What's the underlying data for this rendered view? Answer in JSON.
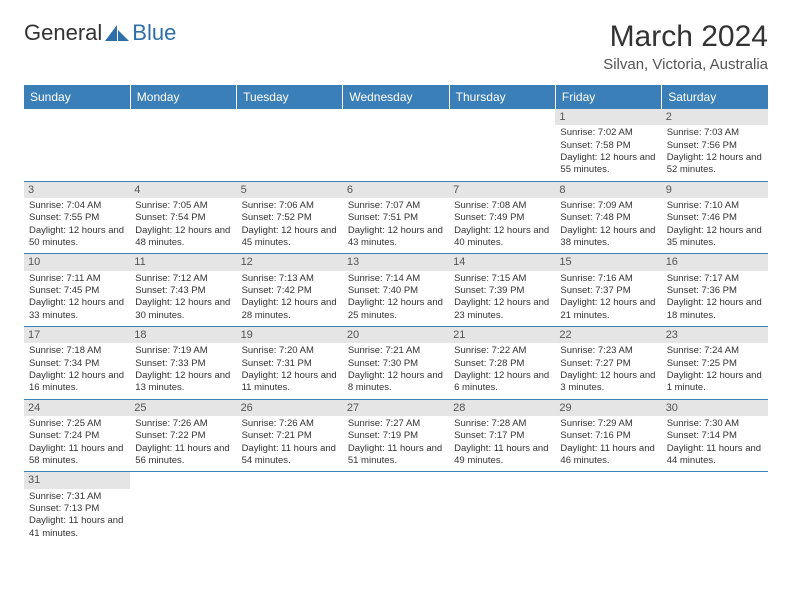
{
  "brand": {
    "part1": "General",
    "part2": "Blue"
  },
  "colors": {
    "header_bg": "#3b7fb8",
    "header_text": "#ffffff",
    "daynum_bg": "#e5e5e5",
    "border": "#3b7fb8",
    "logo_blue": "#2f6fa8"
  },
  "title": "March 2024",
  "location": "Silvan, Victoria, Australia",
  "weekdays": [
    "Sunday",
    "Monday",
    "Tuesday",
    "Wednesday",
    "Thursday",
    "Friday",
    "Saturday"
  ],
  "weeks": [
    [
      {
        "day": "",
        "sunrise": "",
        "sunset": "",
        "daylight": ""
      },
      {
        "day": "",
        "sunrise": "",
        "sunset": "",
        "daylight": ""
      },
      {
        "day": "",
        "sunrise": "",
        "sunset": "",
        "daylight": ""
      },
      {
        "day": "",
        "sunrise": "",
        "sunset": "",
        "daylight": ""
      },
      {
        "day": "",
        "sunrise": "",
        "sunset": "",
        "daylight": ""
      },
      {
        "day": "1",
        "sunrise": "Sunrise: 7:02 AM",
        "sunset": "Sunset: 7:58 PM",
        "daylight": "Daylight: 12 hours and 55 minutes."
      },
      {
        "day": "2",
        "sunrise": "Sunrise: 7:03 AM",
        "sunset": "Sunset: 7:56 PM",
        "daylight": "Daylight: 12 hours and 52 minutes."
      }
    ],
    [
      {
        "day": "3",
        "sunrise": "Sunrise: 7:04 AM",
        "sunset": "Sunset: 7:55 PM",
        "daylight": "Daylight: 12 hours and 50 minutes."
      },
      {
        "day": "4",
        "sunrise": "Sunrise: 7:05 AM",
        "sunset": "Sunset: 7:54 PM",
        "daylight": "Daylight: 12 hours and 48 minutes."
      },
      {
        "day": "5",
        "sunrise": "Sunrise: 7:06 AM",
        "sunset": "Sunset: 7:52 PM",
        "daylight": "Daylight: 12 hours and 45 minutes."
      },
      {
        "day": "6",
        "sunrise": "Sunrise: 7:07 AM",
        "sunset": "Sunset: 7:51 PM",
        "daylight": "Daylight: 12 hours and 43 minutes."
      },
      {
        "day": "7",
        "sunrise": "Sunrise: 7:08 AM",
        "sunset": "Sunset: 7:49 PM",
        "daylight": "Daylight: 12 hours and 40 minutes."
      },
      {
        "day": "8",
        "sunrise": "Sunrise: 7:09 AM",
        "sunset": "Sunset: 7:48 PM",
        "daylight": "Daylight: 12 hours and 38 minutes."
      },
      {
        "day": "9",
        "sunrise": "Sunrise: 7:10 AM",
        "sunset": "Sunset: 7:46 PM",
        "daylight": "Daylight: 12 hours and 35 minutes."
      }
    ],
    [
      {
        "day": "10",
        "sunrise": "Sunrise: 7:11 AM",
        "sunset": "Sunset: 7:45 PM",
        "daylight": "Daylight: 12 hours and 33 minutes."
      },
      {
        "day": "11",
        "sunrise": "Sunrise: 7:12 AM",
        "sunset": "Sunset: 7:43 PM",
        "daylight": "Daylight: 12 hours and 30 minutes."
      },
      {
        "day": "12",
        "sunrise": "Sunrise: 7:13 AM",
        "sunset": "Sunset: 7:42 PM",
        "daylight": "Daylight: 12 hours and 28 minutes."
      },
      {
        "day": "13",
        "sunrise": "Sunrise: 7:14 AM",
        "sunset": "Sunset: 7:40 PM",
        "daylight": "Daylight: 12 hours and 25 minutes."
      },
      {
        "day": "14",
        "sunrise": "Sunrise: 7:15 AM",
        "sunset": "Sunset: 7:39 PM",
        "daylight": "Daylight: 12 hours and 23 minutes."
      },
      {
        "day": "15",
        "sunrise": "Sunrise: 7:16 AM",
        "sunset": "Sunset: 7:37 PM",
        "daylight": "Daylight: 12 hours and 21 minutes."
      },
      {
        "day": "16",
        "sunrise": "Sunrise: 7:17 AM",
        "sunset": "Sunset: 7:36 PM",
        "daylight": "Daylight: 12 hours and 18 minutes."
      }
    ],
    [
      {
        "day": "17",
        "sunrise": "Sunrise: 7:18 AM",
        "sunset": "Sunset: 7:34 PM",
        "daylight": "Daylight: 12 hours and 16 minutes."
      },
      {
        "day": "18",
        "sunrise": "Sunrise: 7:19 AM",
        "sunset": "Sunset: 7:33 PM",
        "daylight": "Daylight: 12 hours and 13 minutes."
      },
      {
        "day": "19",
        "sunrise": "Sunrise: 7:20 AM",
        "sunset": "Sunset: 7:31 PM",
        "daylight": "Daylight: 12 hours and 11 minutes."
      },
      {
        "day": "20",
        "sunrise": "Sunrise: 7:21 AM",
        "sunset": "Sunset: 7:30 PM",
        "daylight": "Daylight: 12 hours and 8 minutes."
      },
      {
        "day": "21",
        "sunrise": "Sunrise: 7:22 AM",
        "sunset": "Sunset: 7:28 PM",
        "daylight": "Daylight: 12 hours and 6 minutes."
      },
      {
        "day": "22",
        "sunrise": "Sunrise: 7:23 AM",
        "sunset": "Sunset: 7:27 PM",
        "daylight": "Daylight: 12 hours and 3 minutes."
      },
      {
        "day": "23",
        "sunrise": "Sunrise: 7:24 AM",
        "sunset": "Sunset: 7:25 PM",
        "daylight": "Daylight: 12 hours and 1 minute."
      }
    ],
    [
      {
        "day": "24",
        "sunrise": "Sunrise: 7:25 AM",
        "sunset": "Sunset: 7:24 PM",
        "daylight": "Daylight: 11 hours and 58 minutes."
      },
      {
        "day": "25",
        "sunrise": "Sunrise: 7:26 AM",
        "sunset": "Sunset: 7:22 PM",
        "daylight": "Daylight: 11 hours and 56 minutes."
      },
      {
        "day": "26",
        "sunrise": "Sunrise: 7:26 AM",
        "sunset": "Sunset: 7:21 PM",
        "daylight": "Daylight: 11 hours and 54 minutes."
      },
      {
        "day": "27",
        "sunrise": "Sunrise: 7:27 AM",
        "sunset": "Sunset: 7:19 PM",
        "daylight": "Daylight: 11 hours and 51 minutes."
      },
      {
        "day": "28",
        "sunrise": "Sunrise: 7:28 AM",
        "sunset": "Sunset: 7:17 PM",
        "daylight": "Daylight: 11 hours and 49 minutes."
      },
      {
        "day": "29",
        "sunrise": "Sunrise: 7:29 AM",
        "sunset": "Sunset: 7:16 PM",
        "daylight": "Daylight: 11 hours and 46 minutes."
      },
      {
        "day": "30",
        "sunrise": "Sunrise: 7:30 AM",
        "sunset": "Sunset: 7:14 PM",
        "daylight": "Daylight: 11 hours and 44 minutes."
      }
    ],
    [
      {
        "day": "31",
        "sunrise": "Sunrise: 7:31 AM",
        "sunset": "Sunset: 7:13 PM",
        "daylight": "Daylight: 11 hours and 41 minutes."
      },
      {
        "day": "",
        "sunrise": "",
        "sunset": "",
        "daylight": ""
      },
      {
        "day": "",
        "sunrise": "",
        "sunset": "",
        "daylight": ""
      },
      {
        "day": "",
        "sunrise": "",
        "sunset": "",
        "daylight": ""
      },
      {
        "day": "",
        "sunrise": "",
        "sunset": "",
        "daylight": ""
      },
      {
        "day": "",
        "sunrise": "",
        "sunset": "",
        "daylight": ""
      },
      {
        "day": "",
        "sunrise": "",
        "sunset": "",
        "daylight": ""
      }
    ]
  ]
}
